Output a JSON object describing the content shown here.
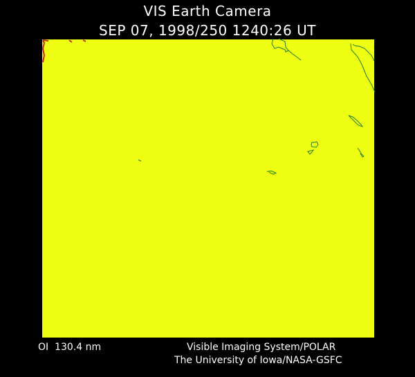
{
  "header": {
    "title": "VIS Earth Camera",
    "timestamp": "SEP 07, 1998/250 1240:26 UT"
  },
  "image": {
    "fill_color": "#eeff14",
    "edge_color": "#c03010",
    "coastline_color": "#1f7f1f"
  },
  "footer": {
    "band": "OI  130.4 nm",
    "instrument": "Visible Imaging System/POLAR",
    "institution": "The University of Iowa/NASA-GSFC"
  }
}
